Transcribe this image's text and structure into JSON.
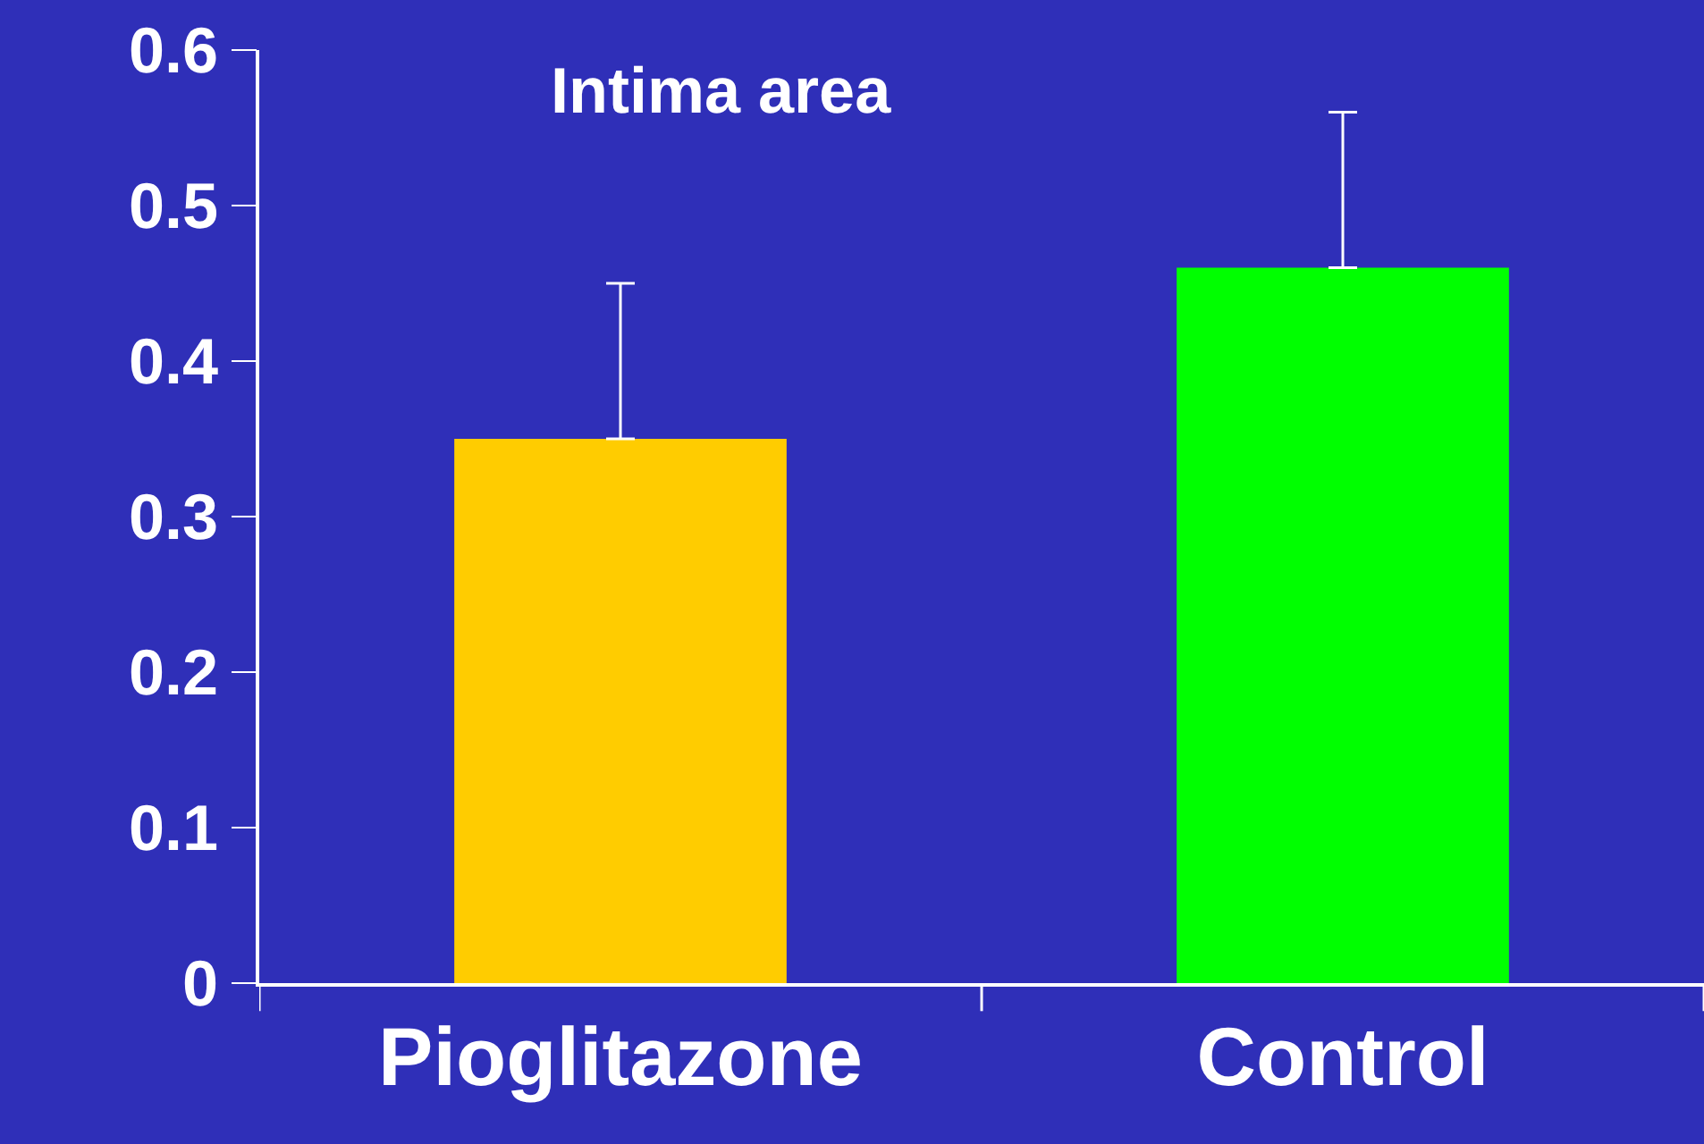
{
  "chart_data": {
    "type": "bar",
    "title": "Intima area",
    "categories": [
      "Pioglitazone",
      "Control"
    ],
    "series": [
      {
        "colors": [
          "#ffcc00",
          "#00ff00"
        ],
        "values": [
          0.35,
          0.46
        ],
        "errors": [
          0.1,
          0.1
        ]
      }
    ],
    "ylim": [
      0,
      0.6
    ],
    "yticks": [
      0,
      0.1,
      0.2,
      0.3,
      0.4,
      0.5,
      0.6
    ],
    "grid": false
  }
}
